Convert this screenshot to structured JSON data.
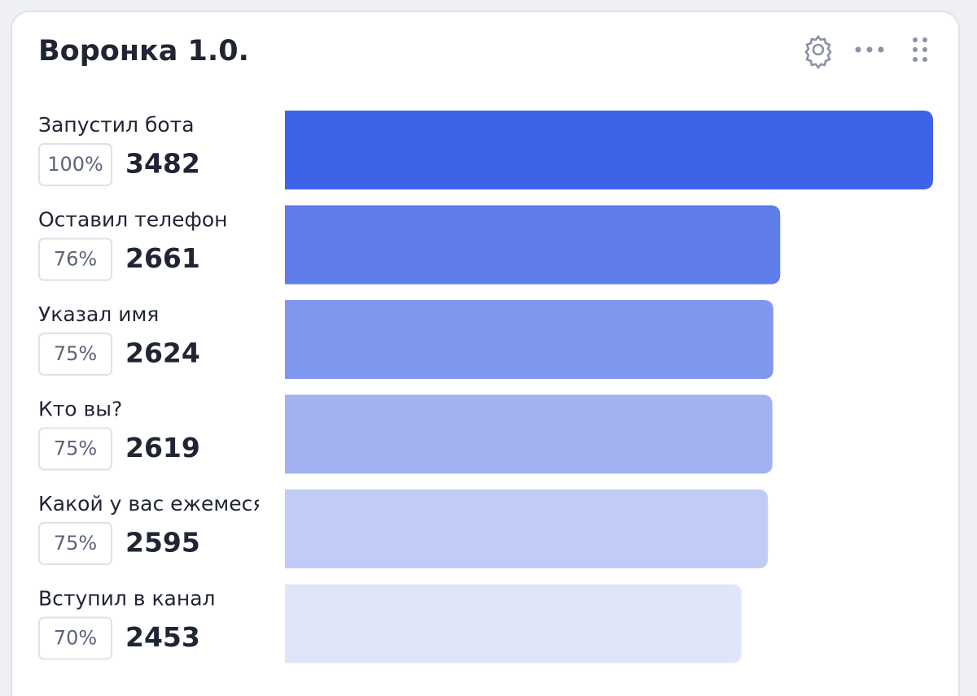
{
  "chart_data": {
    "type": "funnel",
    "title": "Воронка 1.0.",
    "categories": [
      "Запустил бота",
      "Оставил телефон",
      "Указал имя",
      "Кто вы?",
      "Какой у вас ежемесяч",
      "Вступил в канал"
    ],
    "values": [
      3482,
      2661,
      2624,
      2619,
      2595,
      2453
    ],
    "shares": [
      "100%",
      "76%",
      "75%",
      "75%",
      "75%",
      "70%"
    ],
    "colors": [
      "#3f63e6",
      "#5f7de9",
      "#8097ee",
      "#a1b1f1",
      "#c0cbf6",
      "#e0e5fa"
    ]
  }
}
